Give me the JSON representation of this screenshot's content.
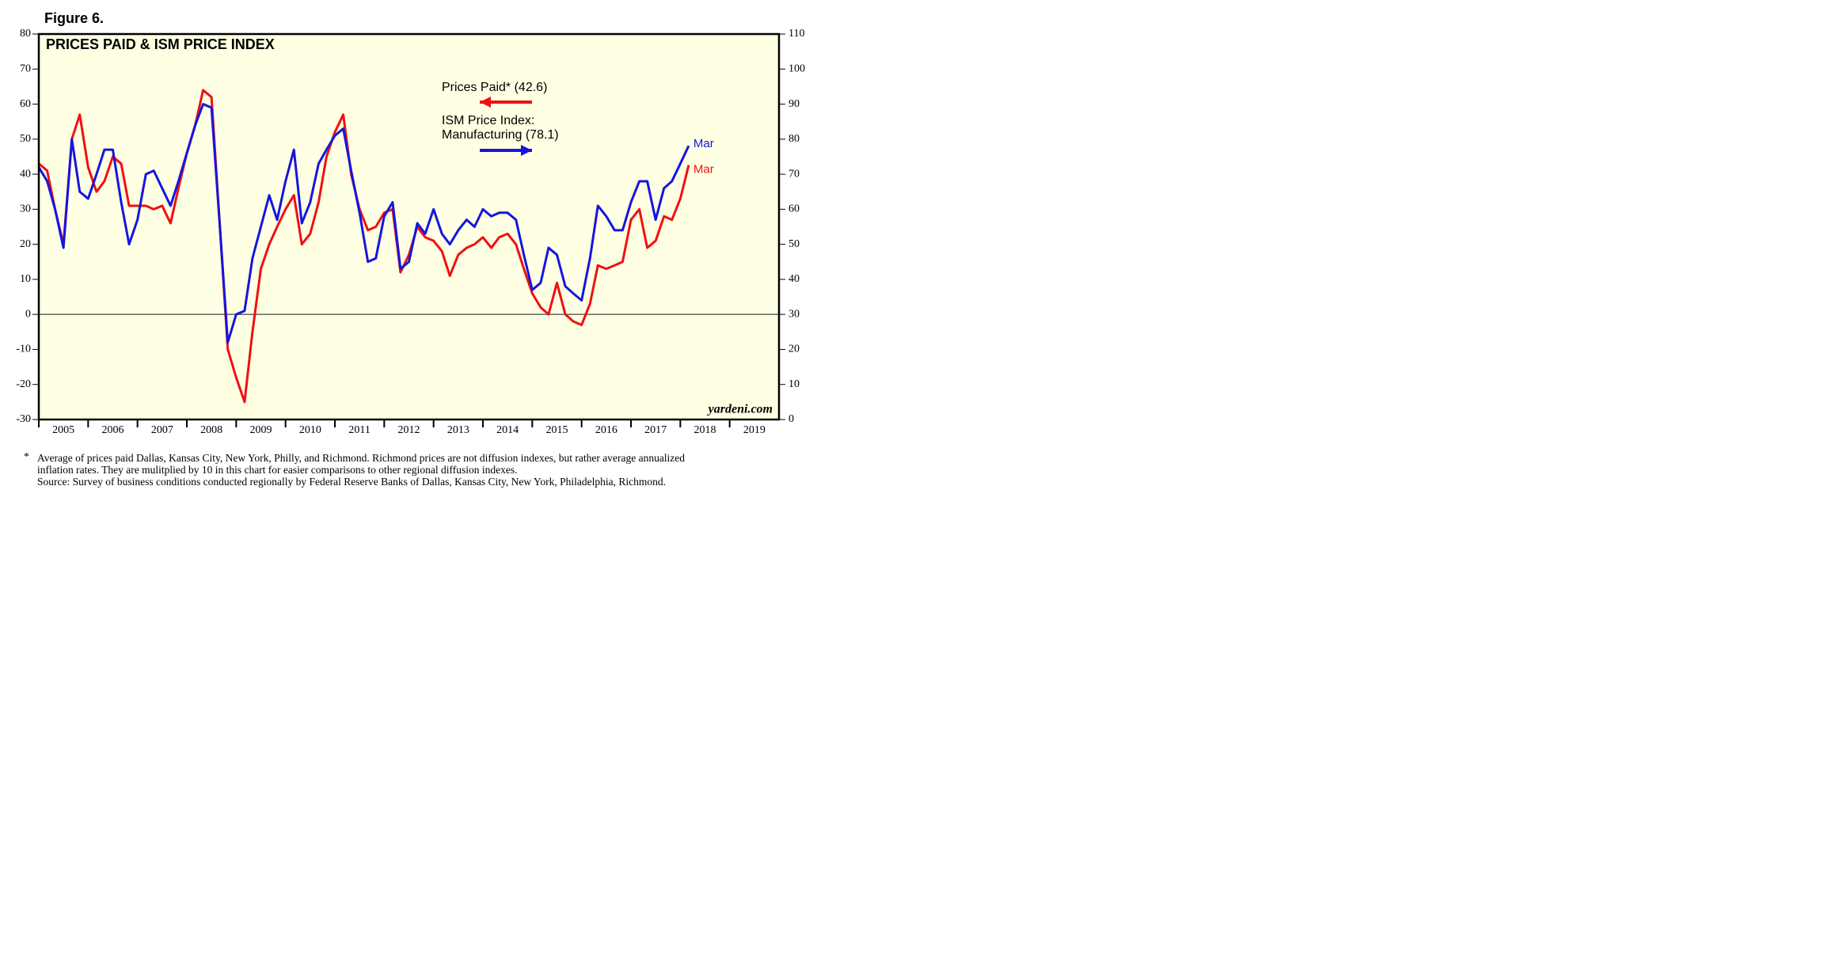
{
  "chart_data": {
    "type": "line",
    "figure_label": "Figure 6.",
    "title": "PRICES PAID & ISM PRICE INDEX",
    "source_credit": "yardeni.com",
    "footnote_marker": "*",
    "footnotes": [
      "Average of prices paid Dallas, Kansas City, New York, Philly, and Richmond. Richmond prices are not diffusion indexes, but rather average annualized",
      "inflation rates. They are mulitplied by 10 in this chart for easier comparisons to other regional diffusion indexes.",
      "Source: Survey of business conditions conducted regionally by Federal Reserve Banks of Dallas, Kansas City, New York, Philadelphia, Richmond."
    ],
    "x": [
      2005.0,
      2005.17,
      2005.33,
      2005.5,
      2005.67,
      2005.83,
      2006.0,
      2006.17,
      2006.33,
      2006.5,
      2006.67,
      2006.83,
      2007.0,
      2007.17,
      2007.33,
      2007.5,
      2007.67,
      2007.83,
      2008.0,
      2008.17,
      2008.33,
      2008.5,
      2008.67,
      2008.83,
      2009.0,
      2009.17,
      2009.33,
      2009.5,
      2009.67,
      2009.83,
      2010.0,
      2010.17,
      2010.33,
      2010.5,
      2010.67,
      2010.83,
      2011.0,
      2011.17,
      2011.33,
      2011.5,
      2011.67,
      2011.83,
      2012.0,
      2012.17,
      2012.33,
      2012.5,
      2012.67,
      2012.83,
      2013.0,
      2013.17,
      2013.33,
      2013.5,
      2013.67,
      2013.83,
      2014.0,
      2014.17,
      2014.33,
      2014.5,
      2014.67,
      2014.83,
      2015.0,
      2015.17,
      2015.33,
      2015.5,
      2015.67,
      2015.83,
      2016.0,
      2016.17,
      2016.33,
      2016.5,
      2016.67,
      2016.83,
      2017.0,
      2017.17,
      2017.33,
      2017.5,
      2017.67,
      2017.83,
      2018.0,
      2018.17
    ],
    "series": [
      {
        "name": "Prices Paid* (42.6)",
        "color": "#ee1111",
        "axis": "y",
        "end_label": "Mar",
        "values": [
          43,
          41,
          30,
          20,
          50,
          57,
          42,
          35,
          38,
          45,
          43,
          31,
          31,
          31,
          30,
          31,
          26,
          36,
          46,
          54,
          64,
          62,
          25,
          -10,
          -18,
          -25,
          -5,
          13,
          20,
          25,
          30,
          34,
          20,
          23,
          32,
          45,
          52,
          57,
          40,
          30,
          24,
          25,
          29,
          30,
          12,
          17,
          25,
          22,
          21,
          18,
          11,
          17,
          19,
          20,
          22,
          19,
          22,
          23,
          20,
          13,
          6,
          2,
          0,
          9,
          0,
          -2,
          -3,
          3,
          14,
          13,
          14,
          15,
          27,
          30,
          19,
          21,
          28,
          27,
          33,
          42.6
        ]
      },
      {
        "name": "ISM Price Index:\nManufacturing (78.1)",
        "color": "#1515e0",
        "axis": "y2",
        "end_label": "Mar",
        "values": [
          72,
          68,
          60,
          49,
          80,
          65,
          63,
          70,
          77,
          77,
          62,
          50,
          57,
          70,
          71,
          66,
          61,
          68,
          76,
          84,
          90,
          89,
          55,
          22,
          30,
          31,
          46,
          55,
          64,
          57,
          68,
          77,
          56,
          62,
          73,
          77,
          81,
          83,
          71,
          59,
          45,
          46,
          58,
          62,
          43,
          45,
          56,
          53,
          60,
          53,
          50,
          54,
          57,
          55,
          60,
          58,
          59,
          59,
          57,
          47,
          37,
          39,
          49,
          47,
          38,
          36,
          34,
          46,
          61,
          58,
          54,
          54,
          62,
          68,
          68,
          57,
          66,
          68,
          73,
          78.1
        ]
      }
    ],
    "xlim": [
      2005,
      2020
    ],
    "xticks": [
      2005,
      2006,
      2007,
      2008,
      2009,
      2010,
      2011,
      2012,
      2013,
      2014,
      2015,
      2016,
      2017,
      2018,
      2019
    ],
    "ylim": [
      -30,
      80
    ],
    "yticks": [
      -30,
      -20,
      -10,
      0,
      10,
      20,
      30,
      40,
      50,
      60,
      70,
      80
    ],
    "y2lim": [
      0,
      110
    ],
    "y2ticks": [
      0,
      10,
      20,
      30,
      40,
      50,
      60,
      70,
      80,
      90,
      100,
      110
    ],
    "zero_line": true,
    "background": "#ffffe3"
  }
}
